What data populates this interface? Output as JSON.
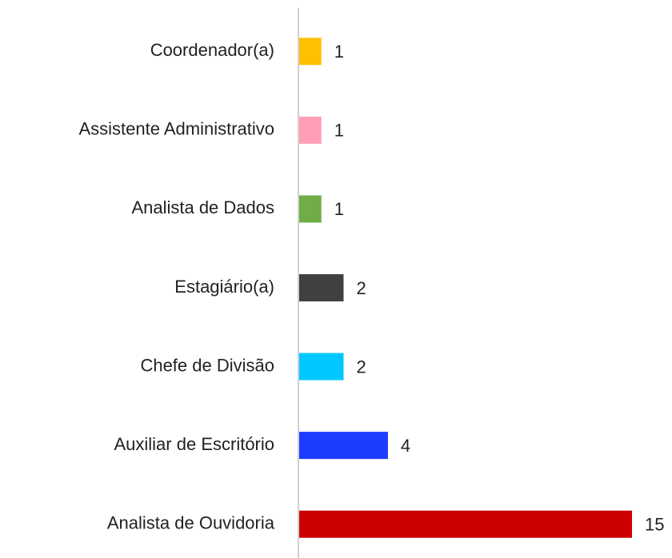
{
  "chart_data": {
    "type": "barh",
    "categories": [
      "Coordenador(a)",
      "Assistente Administrativo",
      "Analista de Dados",
      "Estagiário(a)",
      "Chefe de Divisão",
      "Auxiliar de Escritório",
      "Analista de Ouvidoria"
    ],
    "values": [
      1,
      1,
      1,
      2,
      2,
      4,
      15
    ],
    "colors": [
      "#ffc000",
      "#ff9eb4",
      "#70ad47",
      "#404040",
      "#00c8ff",
      "#1e3cff",
      "#cc0000"
    ]
  }
}
